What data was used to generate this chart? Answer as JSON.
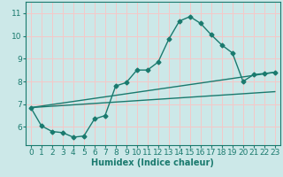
{
  "xlabel": "Humidex (Indice chaleur)",
  "bg_color": "#cce8e8",
  "grid_color": "#f5c8c8",
  "line_color": "#1a7a6e",
  "xlim": [
    -0.5,
    23.5
  ],
  "ylim": [
    5.2,
    11.5
  ],
  "xticks": [
    0,
    1,
    2,
    3,
    4,
    5,
    6,
    7,
    8,
    9,
    10,
    11,
    12,
    13,
    14,
    15,
    16,
    17,
    18,
    19,
    20,
    21,
    22,
    23
  ],
  "yticks": [
    6,
    7,
    8,
    9,
    10,
    11
  ],
  "series1_x": [
    0,
    1,
    2,
    3,
    4,
    5,
    6,
    7,
    8,
    9,
    10,
    11,
    12,
    13,
    14,
    15,
    16,
    17,
    18,
    19,
    20,
    21,
    22,
    23
  ],
  "series1_y": [
    6.85,
    6.05,
    5.8,
    5.75,
    5.55,
    5.6,
    6.35,
    6.5,
    7.8,
    7.95,
    8.5,
    8.5,
    8.85,
    9.85,
    10.65,
    10.85,
    10.55,
    10.05,
    9.6,
    9.25,
    8.0,
    8.3,
    8.35,
    8.4
  ],
  "series2_x": [
    0,
    23
  ],
  "series2_y": [
    6.85,
    8.4
  ],
  "series3_x": [
    0,
    23
  ],
  "series3_y": [
    6.85,
    7.55
  ],
  "marker": "D",
  "markersize": 2.5,
  "linewidth": 1.0,
  "label_fontsize": 7,
  "tick_fontsize": 6.5
}
